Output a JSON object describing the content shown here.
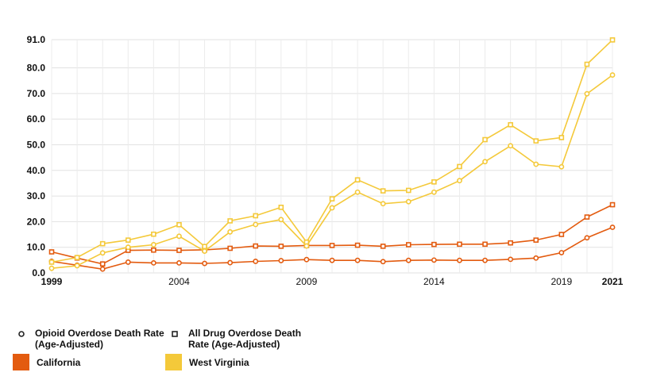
{
  "chart_data": {
    "type": "line",
    "x": [
      1999,
      2000,
      2001,
      2002,
      2003,
      2004,
      2005,
      2006,
      2007,
      2008,
      2009,
      2010,
      2011,
      2012,
      2013,
      2014,
      2015,
      2016,
      2017,
      2018,
      2019,
      2020,
      2021
    ],
    "ylim": [
      0,
      91
    ],
    "yticks": [
      "0.0",
      "10.0",
      "20.0",
      "30.0",
      "40.0",
      "50.0",
      "60.0",
      "70.0",
      "80.0",
      "91.0"
    ],
    "ytick_values": [
      0,
      10,
      20,
      30,
      40,
      50,
      60,
      70,
      80,
      91
    ],
    "xticks": [
      {
        "label": "1999",
        "value": 1999,
        "bold": true
      },
      {
        "label": "2004",
        "value": 2004,
        "bold": false
      },
      {
        "label": "2009",
        "value": 2009,
        "bold": false
      },
      {
        "label": "2014",
        "value": 2014,
        "bold": false
      },
      {
        "label": "2019",
        "value": 2019,
        "bold": false
      },
      {
        "label": "2021",
        "value": 2021,
        "bold": true
      }
    ],
    "series": [
      {
        "name": "California - All Drug Overdose Death Rate (Age-Adjusted)",
        "state": "California",
        "measure": "All Drug Overdose Death Rate (Age-Adjusted)",
        "color": "#e35b0f",
        "marker": "square",
        "values": [
          8.2,
          5.8,
          3.5,
          8.8,
          8.9,
          8.8,
          9.0,
          9.6,
          10.5,
          10.4,
          10.7,
          10.7,
          10.8,
          10.4,
          11.0,
          11.1,
          11.2,
          11.2,
          11.7,
          12.8,
          15.0,
          21.8,
          26.6
        ]
      },
      {
        "name": "California - Opioid Overdose Death Rate (Age-Adjusted)",
        "state": "California",
        "measure": "Opioid Overdose Death Rate (Age-Adjusted)",
        "color": "#e35b0f",
        "marker": "circle",
        "values": [
          4.5,
          3.0,
          1.5,
          4.2,
          3.9,
          3.9,
          3.7,
          4.0,
          4.5,
          4.8,
          5.2,
          4.9,
          4.9,
          4.4,
          4.9,
          5.0,
          4.9,
          4.9,
          5.3,
          5.8,
          7.9,
          13.7,
          17.8
        ]
      },
      {
        "name": "West Virginia - All Drug Overdose Death Rate (Age-Adjusted)",
        "state": "West Virginia",
        "measure": "All Drug Overdose Death Rate (Age-Adjusted)",
        "color": "#f4c93a",
        "marker": "square",
        "values": [
          4.2,
          6.0,
          11.4,
          12.8,
          15.1,
          18.8,
          10.3,
          20.3,
          22.3,
          25.6,
          12.0,
          28.9,
          36.3,
          32.0,
          32.2,
          35.5,
          41.5,
          52.0,
          57.8,
          51.5,
          52.8,
          81.4,
          90.9
        ]
      },
      {
        "name": "West Virginia - Opioid Overdose Death Rate (Age-Adjusted)",
        "state": "West Virginia",
        "measure": "Opioid Overdose Death Rate (Age-Adjusted)",
        "color": "#f4c93a",
        "marker": "circle",
        "values": [
          1.8,
          2.8,
          7.8,
          10.0,
          11.0,
          14.3,
          8.5,
          16.0,
          18.9,
          20.8,
          10.5,
          25.4,
          31.5,
          27.0,
          27.8,
          31.5,
          36.0,
          43.4,
          49.6,
          42.4,
          41.4,
          69.9,
          77.2
        ]
      }
    ],
    "legend": {
      "measures": [
        {
          "label": "Opioid Overdose Death Rate (Age-Adjusted)",
          "marker": "circle"
        },
        {
          "label": "All Drug Overdose Death Rate (Age-Adjusted)",
          "marker": "square"
        }
      ],
      "states": [
        {
          "label": "California",
          "color": "#e35b0f"
        },
        {
          "label": "West Virginia",
          "color": "#f4c93a"
        }
      ],
      "placement": "bottom"
    }
  }
}
